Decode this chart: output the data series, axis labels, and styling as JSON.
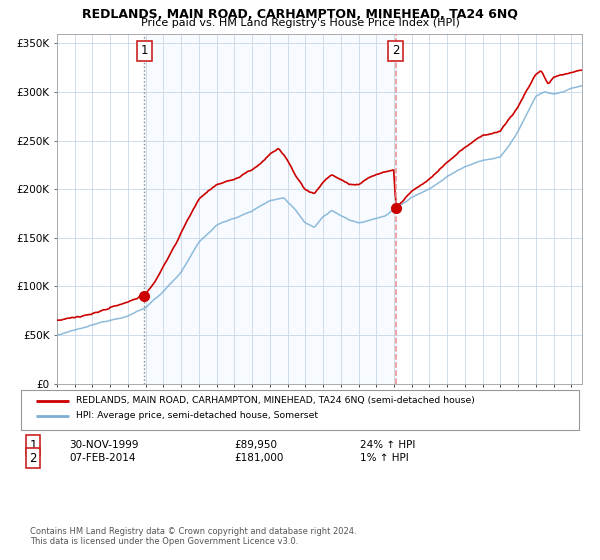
{
  "title": "REDLANDS, MAIN ROAD, CARHAMPTON, MINEHEAD, TA24 6NQ",
  "subtitle": "Price paid vs. HM Land Registry's House Price Index (HPI)",
  "legend_line1": "REDLANDS, MAIN ROAD, CARHAMPTON, MINEHEAD, TA24 6NQ (semi-detached house)",
  "legend_line2": "HPI: Average price, semi-detached house, Somerset",
  "footnote1": "Contains HM Land Registry data © Crown copyright and database right 2024.",
  "footnote2": "This data is licensed under the Open Government Licence v3.0.",
  "transaction1_label": "1",
  "transaction1_date": "30-NOV-1999",
  "transaction1_price": "£89,950",
  "transaction1_hpi": "24% ↑ HPI",
  "transaction2_label": "2",
  "transaction2_date": "07-FEB-2014",
  "transaction2_price": "£181,000",
  "transaction2_hpi": "1% ↑ HPI",
  "transaction1_x": 1999.917,
  "transaction2_x": 2014.1,
  "transaction1_y": 89950,
  "transaction2_y": 181000,
  "hpi_color": "#7bafd4",
  "price_color": "#cc0000",
  "shading_color": "#ddeeff",
  "ylim": [
    0,
    360000
  ],
  "xlim_start": 1995.0,
  "xlim_end": 2024.6,
  "grid_color": "#c8d8e8",
  "spine_color": "#aaaaaa",
  "tick_label_color": "#333333",
  "title_fontsize": 9.0,
  "subtitle_fontsize": 8.0
}
